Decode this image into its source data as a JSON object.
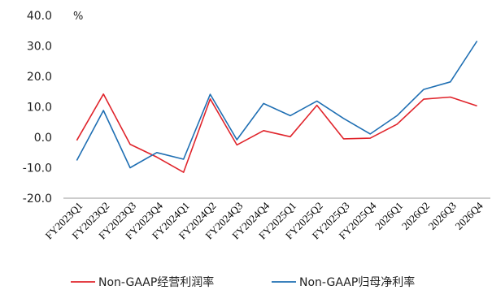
{
  "chart_data": {
    "type": "line",
    "title": "",
    "xlabel": "",
    "ylabel": "",
    "unit": "%",
    "ylim": [
      -20,
      40
    ],
    "yticks": [
      -20,
      -10,
      0,
      10,
      20,
      30,
      40
    ],
    "ytick_labels": [
      "-20.0",
      "-10.0",
      "0.0",
      "10.0",
      "20.0",
      "30.0",
      "40.0"
    ],
    "grid": false,
    "legend": "bottom",
    "categories": [
      "FY2023Q1",
      "FY2023Q2",
      "FY2023Q3",
      "FY2023Q4",
      "FY2024Q1",
      "FY2024Q2",
      "FY2024Q3",
      "FY2024Q4",
      "FY2025Q1",
      "FY2025Q2",
      "FY2025Q3",
      "FY2025Q4",
      "2026Q1",
      "2026Q2",
      "2026Q3",
      "2026Q4"
    ],
    "series": [
      {
        "name": "Non-GAAP经营利润率",
        "color": "#e0242b",
        "values": [
          -1.0,
          14.2,
          -2.3,
          -6.5,
          -11.5,
          12.6,
          -2.5,
          2.2,
          0.2,
          10.5,
          -0.5,
          -0.3,
          4.3,
          12.5,
          13.2,
          10.3
        ]
      },
      {
        "name": "Non-GAAP归母净利率",
        "color": "#1f6fb3",
        "values": [
          -7.6,
          8.8,
          -10.0,
          -5.0,
          -7.2,
          14.1,
          -0.8,
          11.1,
          7.1,
          11.9,
          6.2,
          1.1,
          7.1,
          15.7,
          18.2,
          31.6
        ]
      }
    ]
  }
}
